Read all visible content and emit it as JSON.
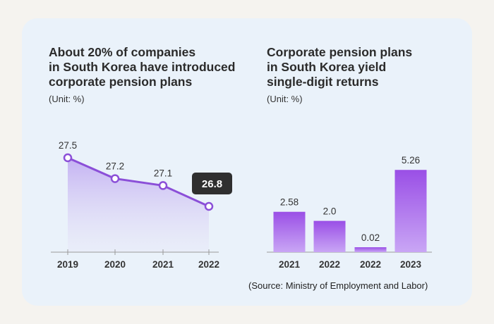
{
  "charts": [
    {
      "title": "About 20% of companies\nin South Korea have introduced\ncorporate pension plans",
      "unit": "(Unit: %)"
    },
    {
      "title": "Corporate pension plans\nin South Korea yield\nsingle-digit returns",
      "unit": "(Unit: %)"
    }
  ],
  "source": "(Source: Ministry of Employment and Labor)",
  "colors": {
    "card_bg": "#eaf2fa",
    "accent": "#8b4fd8",
    "bar_top": "#9a4fe6",
    "bar_bottom": "#c9a6f5",
    "callout_bg": "#2f2f2f"
  },
  "chart_data": [
    {
      "type": "line",
      "categories": [
        "2019",
        "2020",
        "2021",
        "2022"
      ],
      "values": [
        27.5,
        27.2,
        27.1,
        26.8
      ],
      "value_labels": [
        "27.5",
        "27.2",
        "27.1",
        "26.8"
      ],
      "highlight_index": 3,
      "area_fill": true,
      "grid": false
    },
    {
      "type": "bar",
      "categories": [
        "2021",
        "2022",
        "2022",
        "2023"
      ],
      "values": [
        2.58,
        2.0,
        0.02,
        5.26
      ],
      "value_labels": [
        "2.58",
        "2.0",
        "0.02",
        "5.26"
      ],
      "grid": false
    }
  ]
}
